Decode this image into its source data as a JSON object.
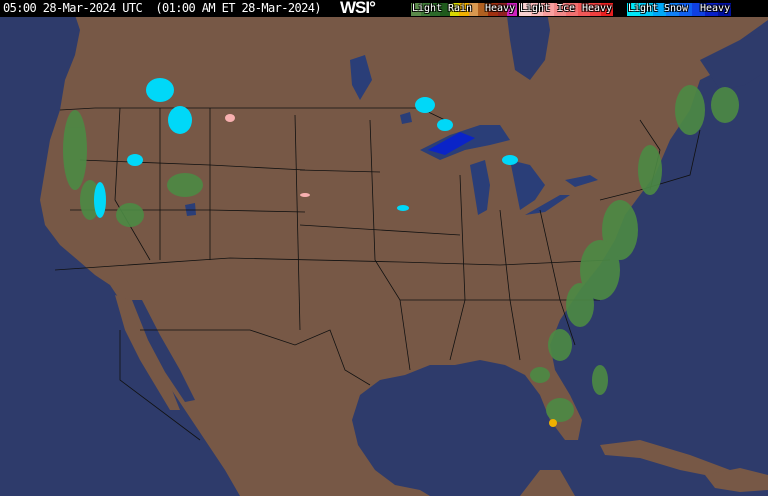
{
  "header": {
    "timestamp": "05:00 28-Mar-2024 UTC  (01:00 AM ET 28-Mar-2024)",
    "logo": "WSI°"
  },
  "legend": {
    "rain": {
      "title": "Rain",
      "light": "Light",
      "heavy": "Heavy",
      "colors": [
        "#5a8a4a",
        "#3f7a38",
        "#2c6a2a",
        "#1e5a1c",
        "#d8d800",
        "#f0b000",
        "#d89850",
        "#b06020",
        "#a03010",
        "#902020",
        "#d020c0"
      ]
    },
    "ice": {
      "title": "Ice",
      "light": "Light",
      "heavy": "Heavy",
      "colors": [
        "#f8d0d0",
        "#f8b8b8",
        "#f8a0a0",
        "#f08888",
        "#f07070",
        "#f05858",
        "#f04040",
        "#e82020"
      ]
    },
    "snow": {
      "title": "Snow",
      "light": "Light",
      "heavy": "Heavy",
      "colors": [
        "#00e8f8",
        "#00c8f8",
        "#00a8f8",
        "#1080f8",
        "#1060f0",
        "#1040e0",
        "#0820c8",
        "#0010a0"
      ]
    }
  },
  "map": {
    "ocean_color": "#2e3b6b",
    "land_color": "#775846",
    "lake_color": "#2a3e78",
    "border_color": "#1a1a1a"
  }
}
